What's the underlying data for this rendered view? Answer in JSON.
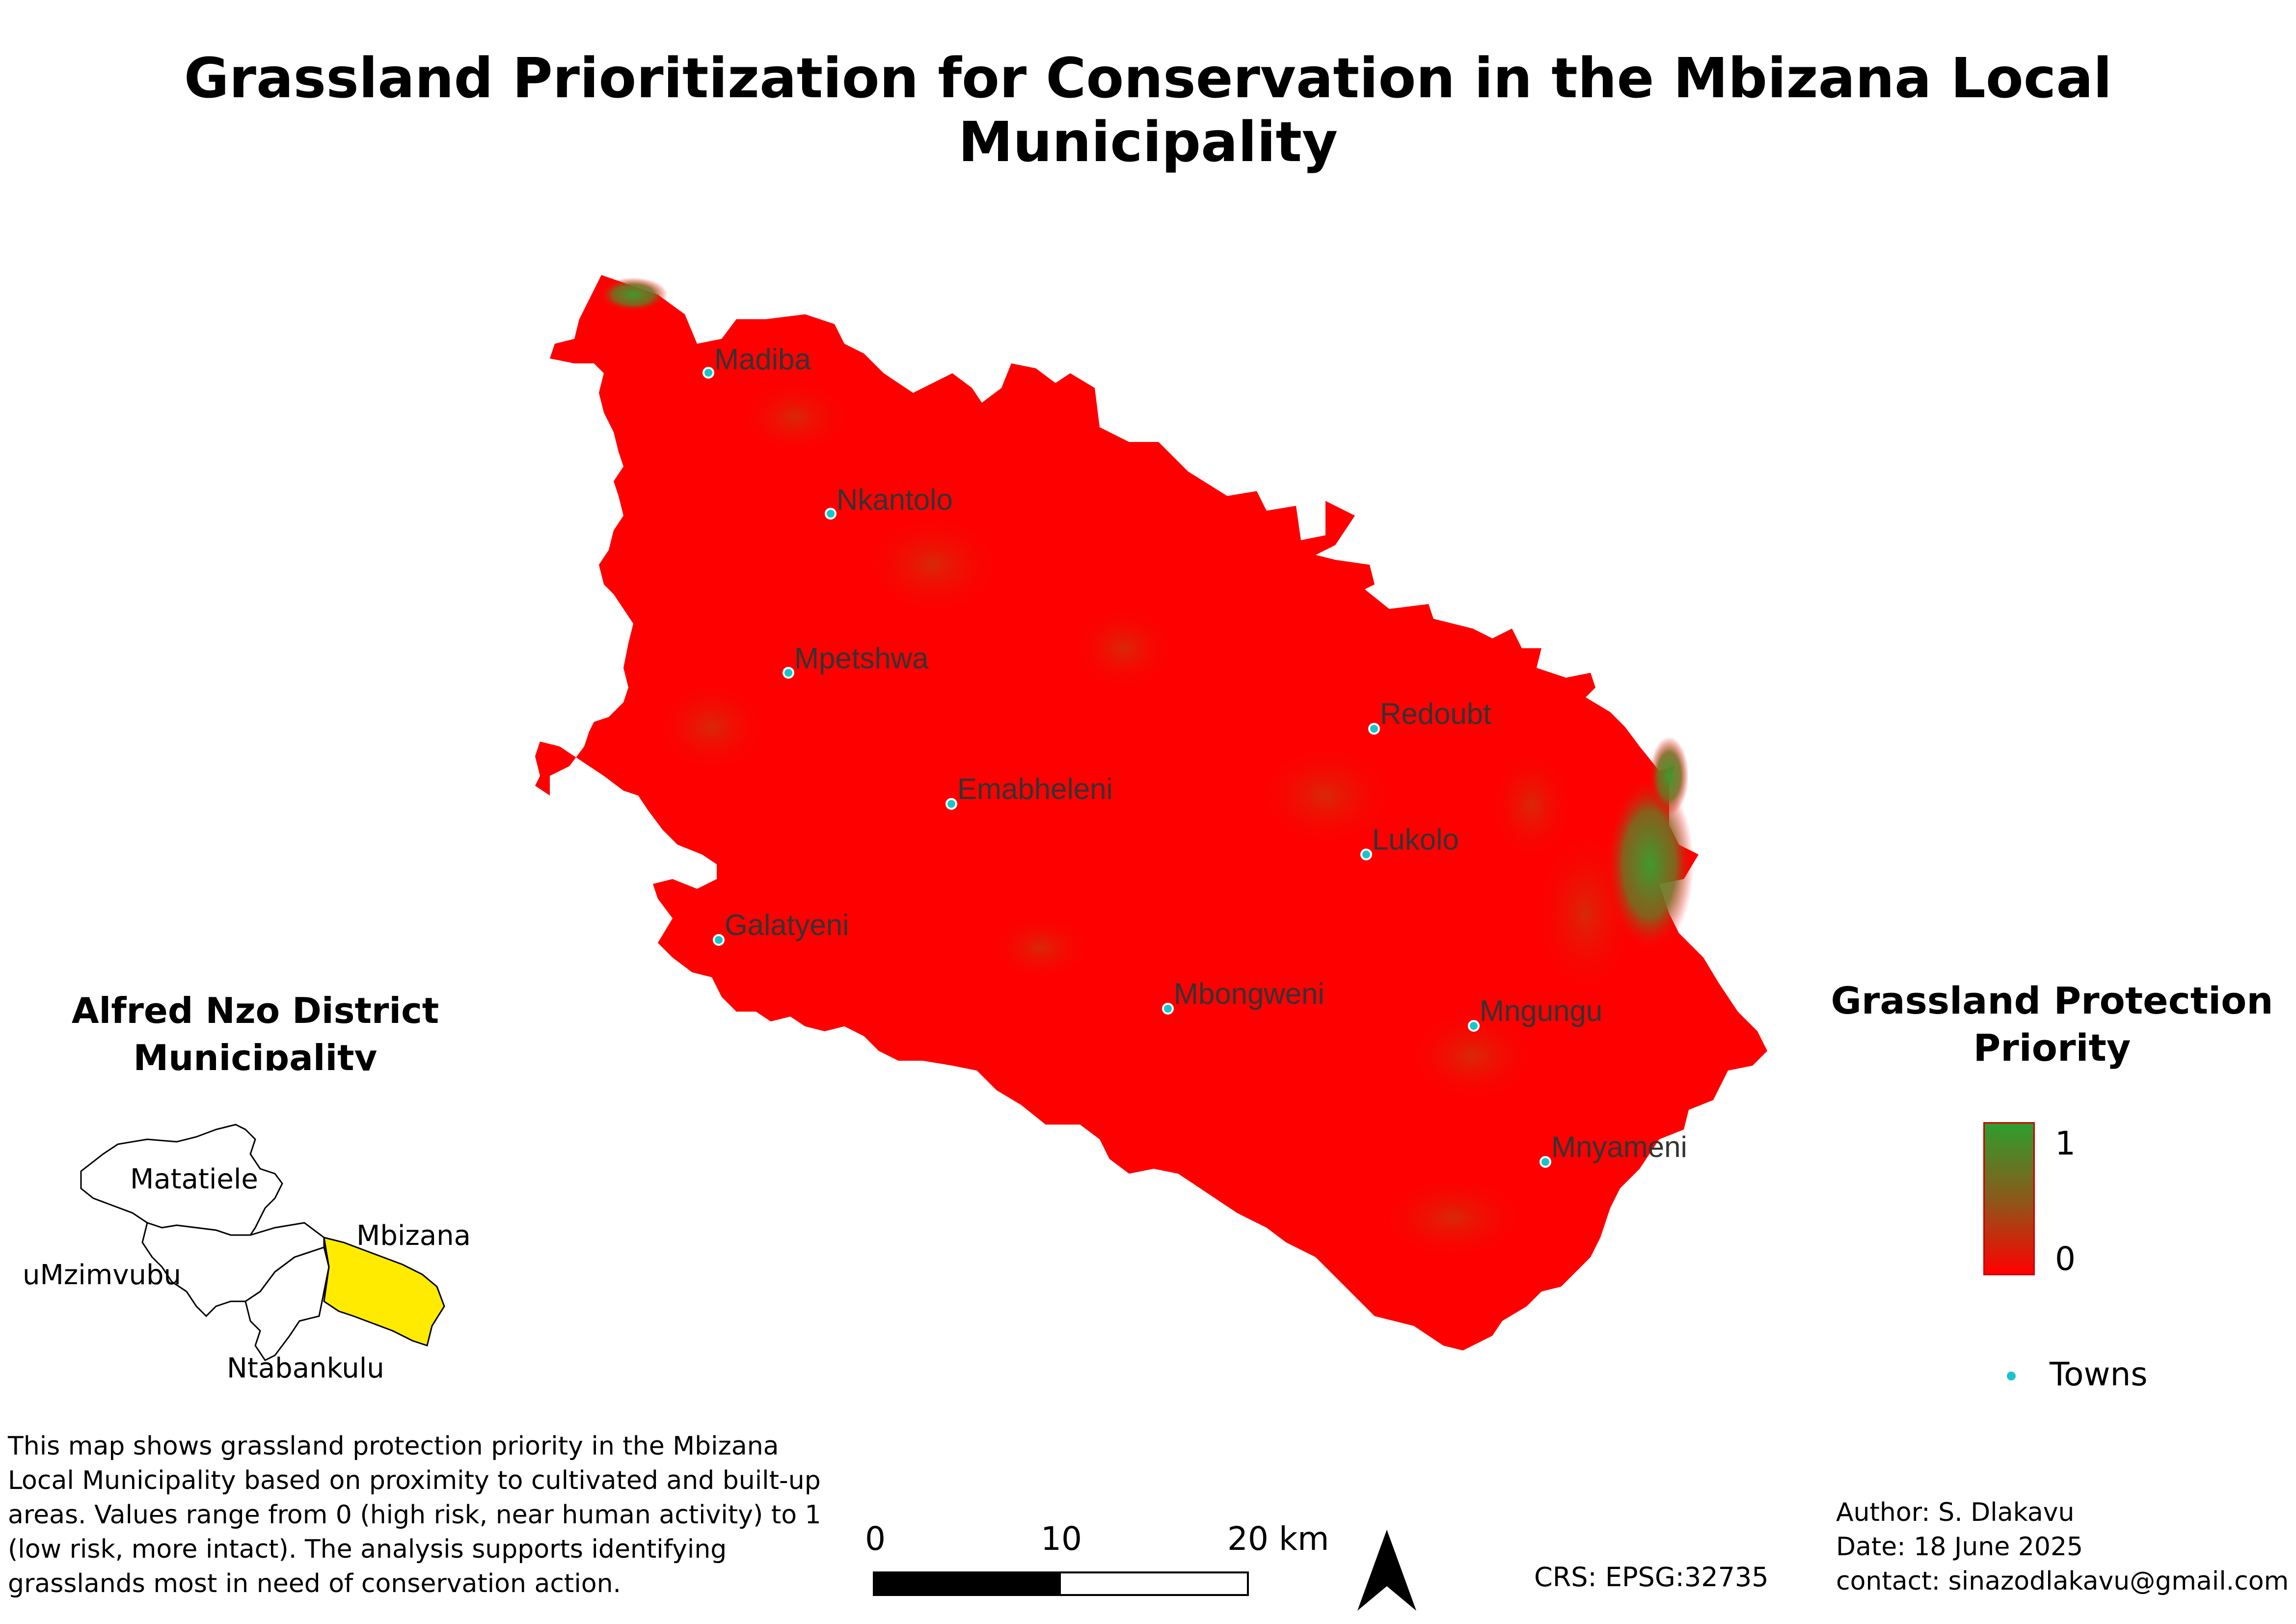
{
  "title": "Grassland Prioritization for Conservation in the Mbizana Local Municipality",
  "colors": {
    "high_priority": "#2e9e2e",
    "low_priority": "#ff0000",
    "town_marker": "#19c5c8",
    "highlight_municipality": "#ffeb00"
  },
  "towns": [
    {
      "name": "Madiba"
    },
    {
      "name": "Nkantolo"
    },
    {
      "name": "Mpetshwa"
    },
    {
      "name": "Redoubt"
    },
    {
      "name": "Emabheleni"
    },
    {
      "name": "Lukolo"
    },
    {
      "name": "Galatyeni"
    },
    {
      "name": "Mbongweni"
    },
    {
      "name": "Mngungu"
    },
    {
      "name": "Mnyameni"
    }
  ],
  "inset": {
    "title": "Alfred Nzo District Municipality",
    "municipalities": [
      "Matatiele",
      "Mbizana",
      "uMzimvubu",
      "Ntabankulu"
    ],
    "highlighted": "Mbizana"
  },
  "legend": {
    "title": "Grassland Protection Priority",
    "max_label": "1",
    "min_label": "0",
    "towns_label": "Towns"
  },
  "description": "This map shows grassland protection priority in the Mbizana Local Municipality based on proximity to cultivated and built-up areas. Values range from 0 (high risk, near human activity) to 1 (low risk, more intact). The analysis supports identifying grasslands most in need of conservation action.",
  "scale_bar": {
    "labels": [
      "0",
      "10",
      "20 km"
    ]
  },
  "crs": "CRS: EPSG:32735",
  "author": "Author: S. Dlakavu",
  "date": "Date: 18 June 2025",
  "contact": "contact: sinazodlakavu@gmail.com"
}
